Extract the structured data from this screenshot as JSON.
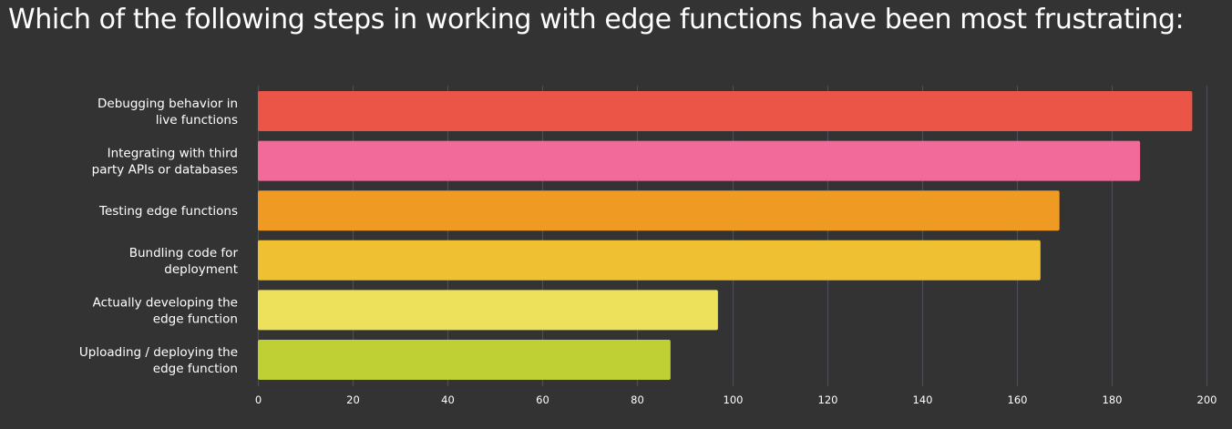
{
  "chart_data": {
    "type": "bar",
    "orientation": "horizontal",
    "title": "Which of the following steps in working with edge functions have been most frustrating:",
    "categories": [
      [
        "Debugging behavior in",
        "live functions"
      ],
      [
        "Integrating with third",
        "party APIs or databases"
      ],
      [
        "Testing edge functions"
      ],
      [
        "Bundling code for",
        "deployment"
      ],
      [
        "Actually developing the",
        "edge function"
      ],
      [
        "Uploading / deploying the",
        "edge function"
      ]
    ],
    "values": [
      197,
      186,
      169,
      165,
      97,
      87
    ],
    "colors": [
      "#ea5548",
      "#f26a9a",
      "#ef9a22",
      "#eec032",
      "#ede05a",
      "#bfd034"
    ],
    "xlim": [
      0,
      200
    ],
    "xticks": [
      0,
      20,
      40,
      60,
      80,
      100,
      120,
      140,
      160,
      180,
      200
    ],
    "grid": true,
    "xlabel": "",
    "ylabel": "",
    "legend": "none"
  },
  "style": {
    "background": "#333333",
    "grid_color": "#4d4d57",
    "text_color": "#ffffff"
  }
}
